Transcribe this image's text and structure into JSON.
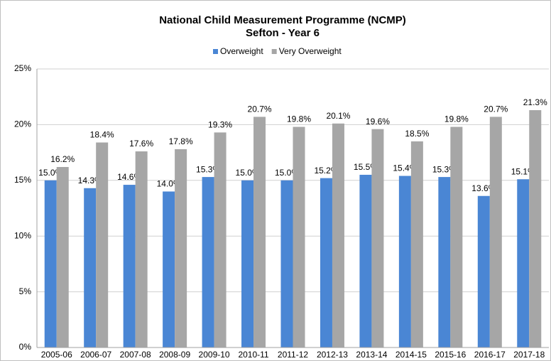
{
  "chart_data": {
    "type": "bar",
    "title": "National Child Measurement Programme (NCMP)",
    "subtitle": "Sefton - Year 6",
    "categories": [
      "2005-06",
      "2006-07",
      "2007-08",
      "2008-09",
      "2009-10",
      "2010-11",
      "2011-12",
      "2012-13",
      "2013-14",
      "2014-15",
      "2015-16",
      "2016-17",
      "2017-18"
    ],
    "series": [
      {
        "name": "Overweight",
        "color": "#4a86d4",
        "values": [
          15.0,
          14.3,
          14.6,
          14.0,
          15.3,
          15.0,
          15.0,
          15.2,
          15.5,
          15.4,
          15.3,
          13.6,
          15.1
        ],
        "value_labels": [
          "15.0%",
          "14.3%",
          "14.6%",
          "14.0%",
          "15.3%",
          "15.0%",
          "15.0%",
          "15.2%",
          "15.5%",
          "15.4%",
          "15.3%",
          "13.6%",
          "15.1%"
        ]
      },
      {
        "name": "Very Overweight",
        "color": "#a6a6a6",
        "values": [
          16.2,
          18.4,
          17.6,
          17.8,
          19.3,
          20.7,
          19.8,
          20.1,
          19.6,
          18.5,
          19.8,
          20.7,
          21.3
        ],
        "value_labels": [
          "16.2%",
          "18.4%",
          "17.6%",
          "17.8%",
          "19.3%",
          "20.7%",
          "19.8%",
          "20.1%",
          "19.6%",
          "18.5%",
          "19.8%",
          "20.7%",
          "21.3%"
        ]
      }
    ],
    "ylim": [
      0,
      25
    ],
    "yticks": [
      {
        "value": 0,
        "label": "0%"
      },
      {
        "value": 5,
        "label": "5%"
      },
      {
        "value": 10,
        "label": "10%"
      },
      {
        "value": 15,
        "label": "15%"
      },
      {
        "value": 20,
        "label": "20%"
      },
      {
        "value": 25,
        "label": "25%"
      }
    ],
    "grid": true,
    "legend": "top"
  }
}
